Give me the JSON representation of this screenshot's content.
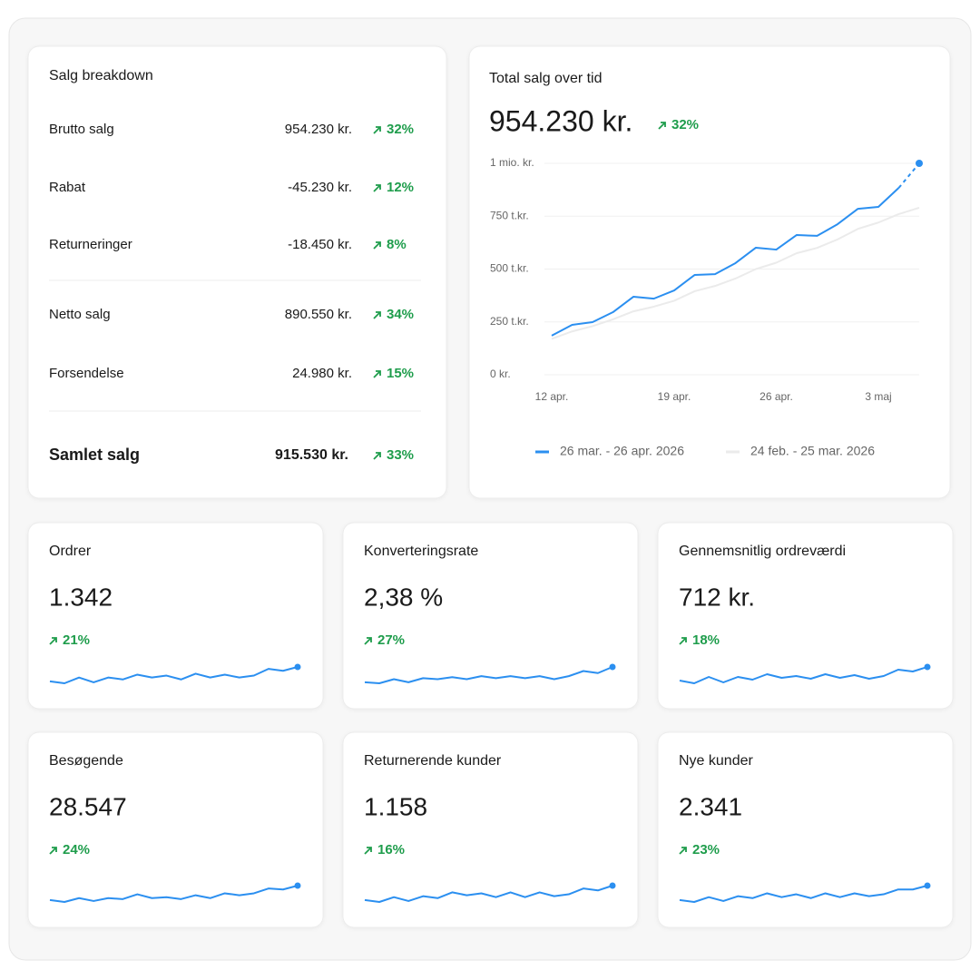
{
  "breakdown": {
    "title": "Salg breakdown",
    "rows": [
      {
        "label": "Brutto salg",
        "value": "954.230 kr.",
        "change": "32%"
      },
      {
        "label": "Rabat",
        "value": "-45.230 kr.",
        "change": "12%"
      },
      {
        "label": "Returneringer",
        "value": "-18.450 kr.",
        "change": "8%"
      },
      {
        "label": "Netto salg",
        "value": "890.550 kr.",
        "change": "34%"
      },
      {
        "label": "Forsendelse",
        "value": "24.980 kr.",
        "change": "15%"
      }
    ],
    "total": {
      "label": "Samlet salg",
      "value": "915.530 kr.",
      "change": "33%"
    }
  },
  "sales": {
    "title": "Total salg over tid",
    "value": "954.230 kr.",
    "change": "32%",
    "chart_data": {
      "type": "line",
      "categories": [
        "12 apr.",
        null,
        null,
        null,
        null,
        null,
        "19 apr.",
        null,
        null,
        null,
        null,
        "26 apr.",
        null,
        null,
        null,
        null,
        "3 maj",
        null,
        null
      ],
      "series": [
        {
          "name": "26 mar. - 26 apr. 2026",
          "color": "#2b8ff0",
          "values": [
            185000,
            236000,
            249000,
            296000,
            369000,
            360000,
            399000,
            472000,
            476000,
            528000,
            601000,
            592000,
            661000,
            657000,
            712000,
            785000,
            794000,
            884000,
            1000000
          ]
        },
        {
          "name": "24 feb. - 25 mar. 2026",
          "color": "#ebebeb",
          "values": [
            170000,
            205000,
            230000,
            262000,
            300000,
            322000,
            350000,
            395000,
            420000,
            455000,
            500000,
            530000,
            575000,
            600000,
            640000,
            690000,
            720000,
            760000,
            790000
          ]
        }
      ],
      "ylim": [
        0,
        1000000
      ],
      "yticks": [
        {
          "value": 0,
          "label": "0 kr."
        },
        {
          "value": 250000,
          "label": "250 t.kr."
        },
        {
          "value": 500000,
          "label": "500 t.kr."
        },
        {
          "value": 750000,
          "label": "750 t.kr."
        },
        {
          "value": 1000000,
          "label": "1 mio. kr."
        }
      ],
      "grid": true,
      "legend": "bottom",
      "forecast_points": 1
    }
  },
  "kpis": [
    {
      "title": "Ordrer",
      "value": "1.342",
      "change": "21%",
      "trend": [
        10,
        8,
        14,
        9,
        14,
        12,
        17,
        14,
        16,
        12,
        18,
        14,
        17,
        14,
        16,
        23,
        21,
        25
      ]
    },
    {
      "title": "Konverteringsrate",
      "value": "2,38 %",
      "change": "27%",
      "trend": [
        9,
        8,
        12,
        9,
        13,
        12,
        14,
        12,
        15,
        13,
        15,
        13,
        15,
        12,
        15,
        20,
        18,
        24
      ]
    },
    {
      "title": "Gennemsnitlig ordreværdi",
      "value": "712 kr.",
      "change": "18%",
      "trend": [
        10,
        7,
        14,
        8,
        14,
        11,
        17,
        13,
        15,
        12,
        17,
        13,
        16,
        12,
        15,
        22,
        20,
        25
      ]
    },
    {
      "title": "Besøgende",
      "value": "28.547",
      "change": "24%",
      "trend": [
        10,
        8,
        12,
        9,
        12,
        11,
        16,
        12,
        13,
        11,
        15,
        12,
        17,
        15,
        17,
        22,
        21,
        25
      ]
    },
    {
      "title": "Returnerende kunder",
      "value": "1.158",
      "change": "16%",
      "trend": [
        10,
        8,
        13,
        9,
        14,
        12,
        18,
        15,
        17,
        13,
        18,
        13,
        18,
        14,
        16,
        22,
        20,
        25
      ]
    },
    {
      "title": "Nye kunder",
      "value": "2.341",
      "change": "23%",
      "trend": [
        9,
        7,
        12,
        8,
        13,
        11,
        16,
        12,
        15,
        11,
        16,
        12,
        16,
        13,
        15,
        20,
        20,
        24
      ]
    }
  ]
}
